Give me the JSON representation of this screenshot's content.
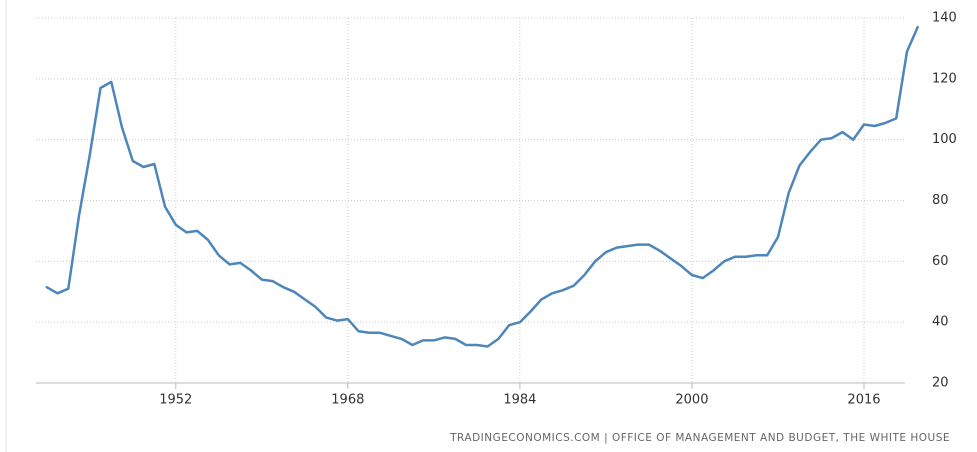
{
  "chart_data": {
    "type": "line",
    "x": [
      1940,
      1941,
      1942,
      1943,
      1944,
      1945,
      1946,
      1947,
      1948,
      1949,
      1950,
      1951,
      1952,
      1953,
      1954,
      1955,
      1956,
      1957,
      1958,
      1959,
      1960,
      1961,
      1962,
      1963,
      1964,
      1965,
      1966,
      1967,
      1968,
      1969,
      1970,
      1971,
      1972,
      1973,
      1974,
      1975,
      1976,
      1977,
      1978,
      1979,
      1980,
      1981,
      1982,
      1983,
      1984,
      1985,
      1986,
      1987,
      1988,
      1989,
      1990,
      1991,
      1992,
      1993,
      1994,
      1995,
      1996,
      1997,
      1998,
      1999,
      2000,
      2001,
      2002,
      2003,
      2004,
      2005,
      2006,
      2007,
      2008,
      2009,
      2010,
      2011,
      2012,
      2013,
      2014,
      2015,
      2016,
      2017,
      2018,
      2019,
      2020,
      2021
    ],
    "series": [
      {
        "color": "#4d86bb",
        "values": [
          51.5,
          49.5,
          51,
          75,
          95,
          117,
          119,
          104,
          93,
          91,
          92,
          78,
          72,
          69.5,
          70,
          67,
          62,
          59,
          59.5,
          57,
          54,
          53.5,
          51.5,
          50,
          47.5,
          45,
          41.5,
          40.5,
          41,
          37,
          36.5,
          36.5,
          35.5,
          34.5,
          32.5,
          34,
          34,
          35,
          34.5,
          32.5,
          32.5,
          32,
          34.5,
          39,
          40,
          43.5,
          47.5,
          49.5,
          50.5,
          52,
          55.5,
          60,
          63,
          64.5,
          65,
          65.5,
          65.5,
          63.5,
          61,
          58.5,
          55.5,
          54.5,
          57,
          60,
          61.5,
          61.5,
          62,
          62,
          68,
          82.5,
          91.5,
          96,
          100,
          100.5,
          102.5,
          100,
          105,
          104.5,
          105.5,
          107,
          129,
          137
        ]
      }
    ],
    "xlim": [
      1939,
      2022
    ],
    "xticks": [
      1952,
      1968,
      1984,
      2000,
      2016
    ],
    "ylim": [
      20,
      140
    ],
    "yticks": [
      20,
      40,
      60,
      80,
      100,
      120,
      140
    ],
    "grid": true,
    "source": "TRADINGECONOMICS.COM  |  OFFICE OF MANAGEMENT AND BUDGET, THE WHITE HOUSE"
  }
}
